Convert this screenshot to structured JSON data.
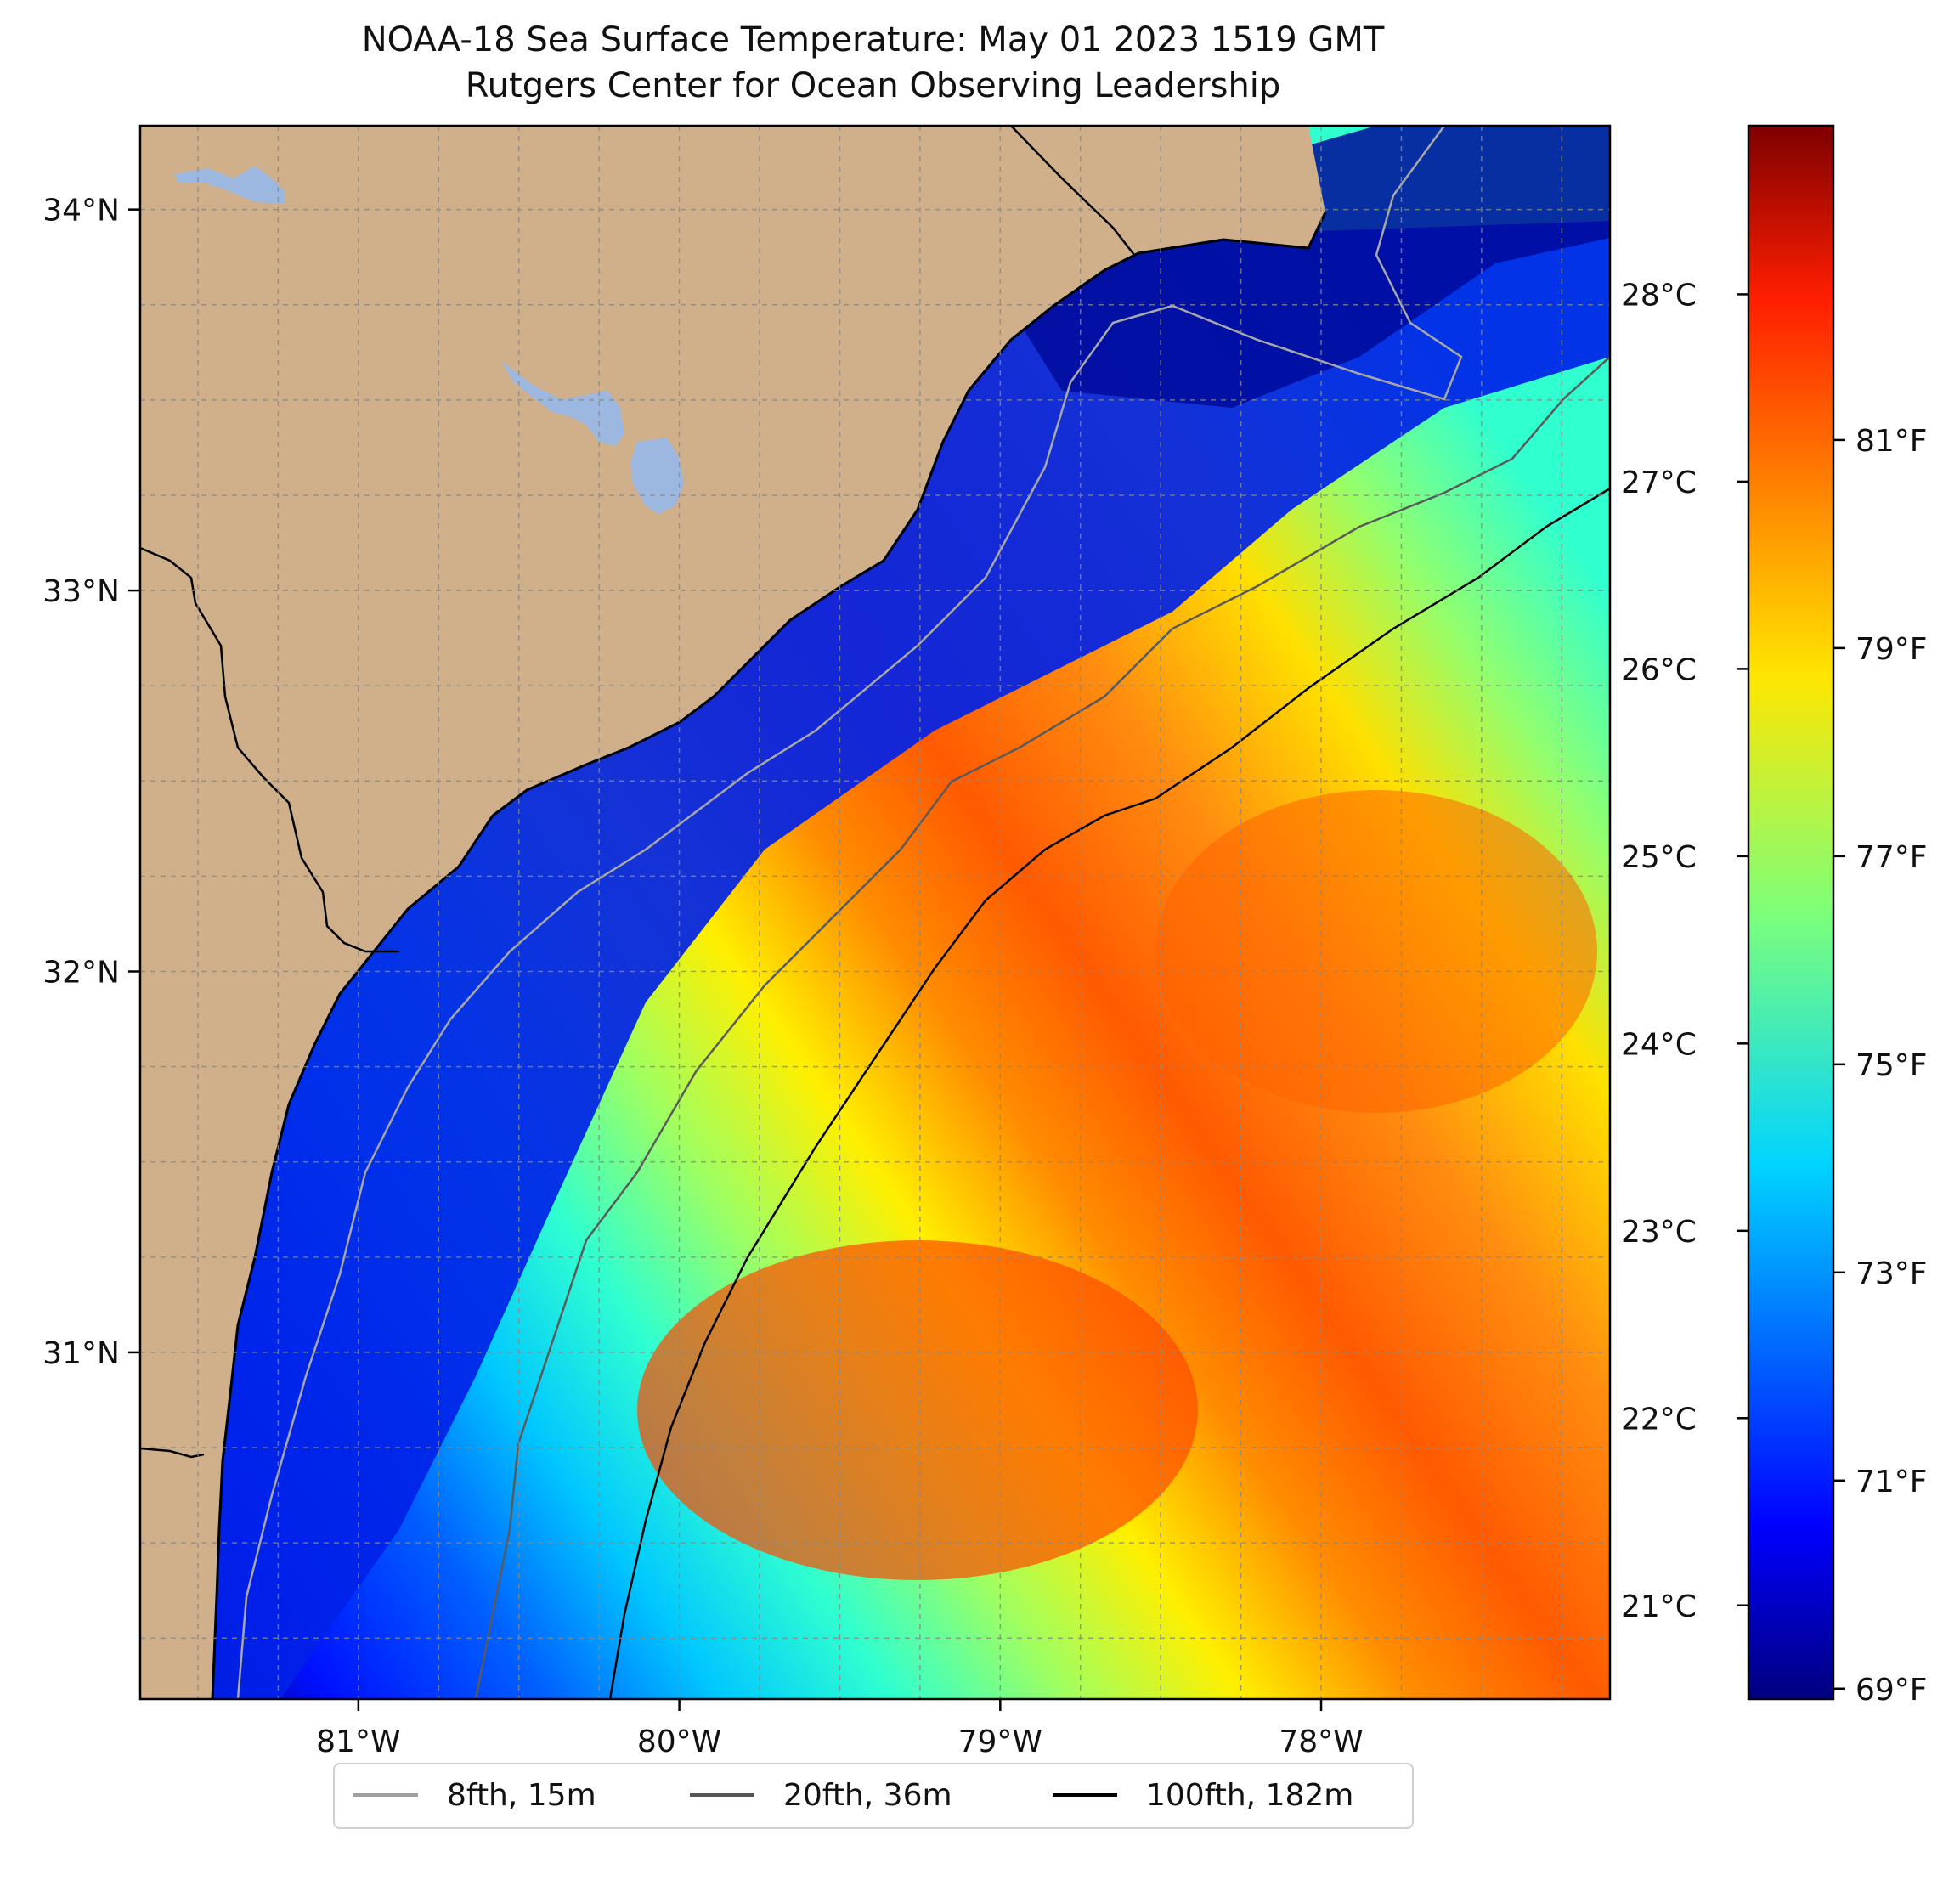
{
  "title": {
    "line1": "NOAA-18 Sea Surface Temperature: May 01 2023 1519 GMT",
    "line2": "Rutgers Center for Ocean Observing Leadership"
  },
  "colors": {
    "land": "#CFB08B",
    "lake": "#9DB8E0",
    "grid": "#888888"
  },
  "chart_data": {
    "type": "heatmap",
    "title": "NOAA-18 Sea Surface Temperature: May 01 2023 1519 GMT",
    "subtitle": "Rutgers Center for Ocean Observing Leadership",
    "extent": {
      "lon": [
        -81.68,
        -77.1
      ],
      "lat": [
        30.09,
        34.22
      ]
    },
    "x_ticks": [
      {
        "value": -81,
        "label": "81°W"
      },
      {
        "value": -80,
        "label": "80°W"
      },
      {
        "value": -79,
        "label": "79°W"
      },
      {
        "value": -78,
        "label": "78°W"
      }
    ],
    "y_ticks": [
      {
        "value": 31,
        "label": "31°N"
      },
      {
        "value": 32,
        "label": "32°N"
      },
      {
        "value": 33,
        "label": "33°N"
      },
      {
        "value": 34,
        "label": "34°N"
      }
    ],
    "colorbar": {
      "colormap": "jet",
      "range_c": [
        20.5,
        28.9
      ],
      "celsius_ticks": [
        {
          "value": 21,
          "label": "21°C"
        },
        {
          "value": 22,
          "label": "22°C"
        },
        {
          "value": 23,
          "label": "23°C"
        },
        {
          "value": 24,
          "label": "24°C"
        },
        {
          "value": 25,
          "label": "25°C"
        },
        {
          "value": 26,
          "label": "26°C"
        },
        {
          "value": 27,
          "label": "27°C"
        },
        {
          "value": 28,
          "label": "28°C"
        }
      ],
      "fahrenheit_ticks": [
        {
          "value": 69,
          "label": "69°F"
        },
        {
          "value": 71,
          "label": "71°F"
        },
        {
          "value": 73,
          "label": "73°F"
        },
        {
          "value": 75,
          "label": "75°F"
        },
        {
          "value": 77,
          "label": "77°F"
        },
        {
          "value": 79,
          "label": "79°F"
        },
        {
          "value": 81,
          "label": "81°F"
        }
      ]
    },
    "legend": {
      "placement": "bottom-center",
      "items": [
        {
          "label": "8fth, 15m",
          "color": "#a0a0a0"
        },
        {
          "label": "20fth, 36m",
          "color": "#555555"
        },
        {
          "label": "100fth, 182m",
          "color": "#000000"
        }
      ]
    }
  }
}
